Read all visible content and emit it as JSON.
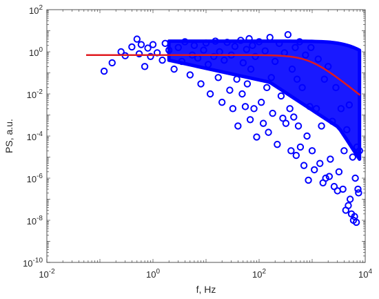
{
  "chart_data": {
    "type": "scatter",
    "title": "",
    "xlabel": "f, Hz",
    "ylabel": "PS, a.u.",
    "x_scale": "log",
    "y_scale": "log",
    "xlim": [
      0.01,
      10000
    ],
    "ylim": [
      1e-10,
      100
    ],
    "grid": false,
    "legend": "none",
    "x_ticks": [
      {
        "value": 0.01,
        "base": "10",
        "exp": "-2"
      },
      {
        "value": 1,
        "base": "10",
        "exp": "0"
      },
      {
        "value": 100,
        "base": "10",
        "exp": "2"
      },
      {
        "value": 10000,
        "base": "10",
        "exp": "4"
      }
    ],
    "y_ticks": [
      {
        "value": 1e-10,
        "base": "10",
        "exp": "-10"
      },
      {
        "value": 1e-08,
        "base": "10",
        "exp": "-8"
      },
      {
        "value": 1e-06,
        "base": "10",
        "exp": "-6"
      },
      {
        "value": 0.0001,
        "base": "10",
        "exp": "-4"
      },
      {
        "value": 0.01,
        "base": "10",
        "exp": "-2"
      },
      {
        "value": 1,
        "base": "10",
        "exp": "0"
      },
      {
        "value": 100,
        "base": "10",
        "exp": "2"
      }
    ],
    "series": [
      {
        "marker": "circle",
        "color": "#0000ff",
        "points": [
          [
            0.12,
            0.12
          ],
          [
            0.17,
            0.3
          ],
          [
            0.25,
            1.0
          ],
          [
            0.3,
            0.65
          ],
          [
            0.4,
            1.7
          ],
          [
            0.5,
            4.0
          ],
          [
            0.55,
            0.8
          ],
          [
            0.6,
            2.2
          ],
          [
            0.7,
            0.2
          ],
          [
            0.8,
            1.5
          ],
          [
            0.9,
            0.6
          ],
          [
            1.0,
            2.2
          ],
          [
            1.2,
            0.9
          ],
          [
            1.5,
            0.4
          ],
          [
            1.7,
            2.5
          ],
          [
            2.0,
            1.2
          ],
          [
            2.5,
            0.15
          ],
          [
            3.0,
            1.6
          ],
          [
            3.5,
            0.35
          ],
          [
            4.0,
            3.0
          ],
          [
            5.0,
            0.08
          ],
          [
            5.5,
            0.7
          ],
          [
            6.0,
            2.0
          ],
          [
            7.0,
            0.5
          ],
          [
            8.0,
            0.03
          ],
          [
            9.0,
            1.2
          ],
          [
            10,
            2.6
          ],
          [
            11,
            0.25
          ],
          [
            12,
            0.01
          ],
          [
            14,
            0.6
          ],
          [
            15,
            3.2
          ],
          [
            17,
            0.06
          ],
          [
            18,
            1.0
          ],
          [
            20,
            0.004
          ],
          [
            22,
            0.4
          ],
          [
            25,
            2.8
          ],
          [
            28,
            0.015
          ],
          [
            30,
            0.7
          ],
          [
            32,
            0.002
          ],
          [
            35,
            1.8
          ],
          [
            38,
            0.05
          ],
          [
            40,
            0.0003
          ],
          [
            45,
            3.5
          ],
          [
            48,
            0.01
          ],
          [
            50,
            0.3
          ],
          [
            55,
            0.0025
          ],
          [
            58,
            1.3
          ],
          [
            60,
            0.03
          ],
          [
            65,
            4.2
          ],
          [
            68,
            0.0006
          ],
          [
            70,
            0.15
          ],
          [
            75,
            2.0
          ],
          [
            80,
            0.002
          ],
          [
            85,
            0.6
          ],
          [
            90,
            9e-05
          ],
          [
            100,
            3.0
          ],
          [
            110,
            0.004
          ],
          [
            120,
            0.0004
          ],
          [
            130,
            1.1
          ],
          [
            140,
            0.02
          ],
          [
            150,
            0.00015
          ],
          [
            160,
            4.8
          ],
          [
            170,
            0.06
          ],
          [
            180,
            0.0012
          ],
          [
            200,
            0.35
          ],
          [
            220,
            4e-05
          ],
          [
            240,
            2.5
          ],
          [
            260,
            0.008
          ],
          [
            280,
            0.0007
          ],
          [
            300,
            0.9
          ],
          [
            320,
            0.0004
          ],
          [
            350,
            6.5
          ],
          [
            380,
            0.002
          ],
          [
            400,
            2e-05
          ],
          [
            420,
            0.15
          ],
          [
            450,
            0.0008
          ],
          [
            480,
            1.6
          ],
          [
            500,
            1.2e-05
          ],
          [
            520,
            0.05
          ],
          [
            550,
            0.0003
          ],
          [
            580,
            3.0
          ],
          [
            600,
            3e-05
          ],
          [
            650,
            0.02
          ],
          [
            700,
            4e-06
          ],
          [
            750,
            0.7
          ],
          [
            800,
            0.0001
          ],
          [
            850,
            8e-07
          ],
          [
            900,
            0.0025
          ],
          [
            950,
            1.6
          ],
          [
            1000,
            2e-05
          ],
          [
            1100,
            2.5e-06
          ],
          [
            1200,
            0.002
          ],
          [
            1300,
            0.45
          ],
          [
            1400,
            5e-06
          ],
          [
            1500,
            0.0003
          ],
          [
            1600,
            6e-07
          ],
          [
            1700,
            0.05
          ],
          [
            1800,
            1e-06
          ],
          [
            2000,
            0.2
          ],
          [
            2100,
            1.2e-06
          ],
          [
            2200,
            8e-06
          ],
          [
            2400,
            0.0005
          ],
          [
            2600,
            4e-07
          ],
          [
            2800,
            0.02
          ],
          [
            3000,
            2.5e-07
          ],
          [
            3200,
            2e-06
          ],
          [
            3500,
            0.002
          ],
          [
            3800,
            3e-07
          ],
          [
            4000,
            2e-05
          ],
          [
            4300,
            3e-08
          ],
          [
            4500,
            0.0002
          ],
          [
            4800,
            5e-08
          ],
          [
            5000,
            0.003
          ],
          [
            5200,
            1e-07
          ],
          [
            5500,
            2e-08
          ],
          [
            5800,
            1e-05
          ],
          [
            6000,
            1e-08
          ],
          [
            6300,
            1.5e-08
          ],
          [
            6500,
            1e-06
          ],
          [
            6800,
            8e-09
          ],
          [
            7000,
            3e-05
          ],
          [
            7300,
            3e-07
          ],
          [
            7500,
            2e-07
          ],
          [
            7800,
            2e-05
          ]
        ]
      },
      {
        "marker": "line",
        "color": "#e0191e",
        "plateau": 0.7,
        "corner_hz": 900,
        "x_start": 0.055,
        "x_end": 8000
      }
    ]
  }
}
